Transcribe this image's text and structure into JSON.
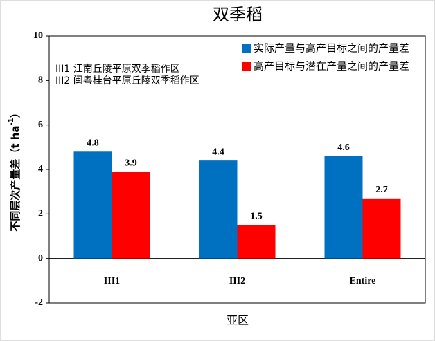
{
  "chart_data": {
    "type": "bar",
    "title": "双季稻",
    "x_label": "亚区",
    "y_label": {
      "text": "不同层次产量差（t ha",
      "sup": "-1",
      "end": "）"
    },
    "notes": [
      "III1  江南丘陵平原双季稻作区",
      "III2  闽粤桂台平原丘陵双季稻作区"
    ],
    "categories": [
      "III1",
      "III2",
      "Entire"
    ],
    "series": [
      {
        "name": "实际产量与高产目标之间的产量差",
        "color": "#0070c0",
        "values": [
          4.8,
          4.4,
          4.6
        ]
      },
      {
        "name": "高产目标与潜在产量之间的产量差",
        "color": "#ff0000",
        "values": [
          3.9,
          1.5,
          2.7
        ]
      }
    ],
    "ylim": [
      -2,
      10
    ],
    "yticks": [
      -2,
      0,
      2,
      4,
      6,
      8,
      10
    ],
    "legend": "upper right",
    "grid": false
  }
}
